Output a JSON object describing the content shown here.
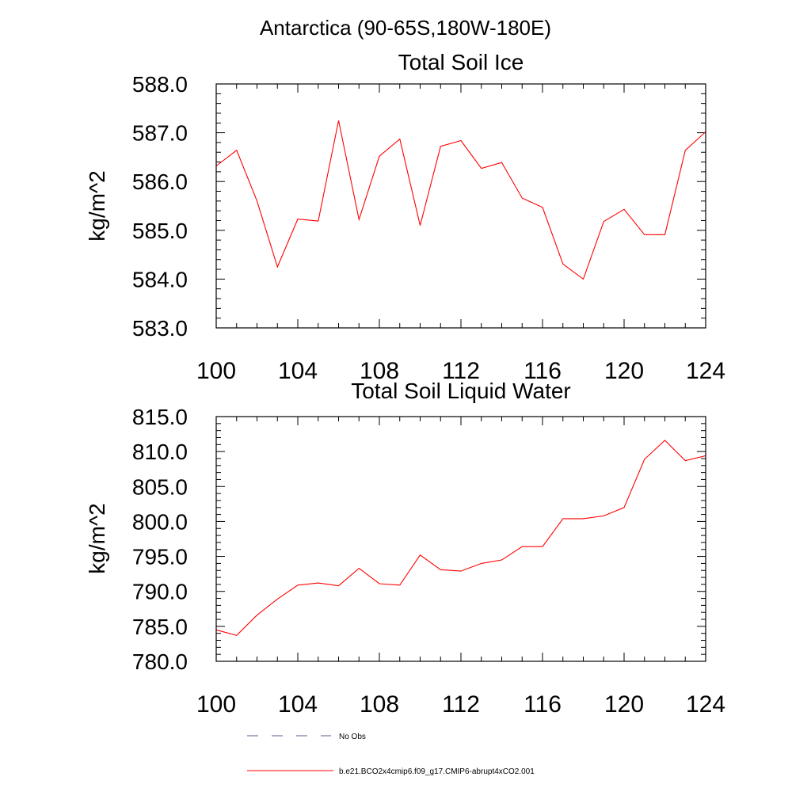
{
  "figure": {
    "region_title": "Antarctica (90-65S,180W-180E)"
  },
  "chart_data": [
    {
      "type": "line",
      "title": "Total Soil Ice",
      "xlabel": "",
      "ylabel": "kg/m^2",
      "xlim": [
        100,
        124
      ],
      "ylim": [
        583.0,
        588.0
      ],
      "x_ticks": [
        "100",
        "104",
        "108",
        "112",
        "116",
        "120",
        "124"
      ],
      "y_ticks": [
        "583.0",
        "584.0",
        "585.0",
        "586.0",
        "587.0",
        "588.0"
      ],
      "x": [
        100,
        101,
        102,
        103,
        104,
        105,
        106,
        107,
        108,
        109,
        110,
        111,
        112,
        113,
        114,
        115,
        116,
        117,
        118,
        119,
        120,
        121,
        122,
        123,
        124
      ],
      "series": [
        {
          "name": "b.e21.BCO2x4cmip6.f09_g17.CMIP6-abrupt4xCO2.001",
          "color": "#ff0000",
          "values": [
            586.32,
            586.64,
            585.6,
            584.25,
            585.23,
            585.19,
            587.25,
            585.22,
            586.52,
            586.87,
            585.1,
            586.72,
            586.84,
            586.27,
            586.39,
            585.66,
            585.47,
            584.31,
            584.0,
            585.18,
            585.43,
            584.91,
            584.91,
            586.64,
            587.02
          ]
        }
      ]
    },
    {
      "type": "line",
      "title": "Total Soil Liquid Water",
      "xlabel": "",
      "ylabel": "kg/m^2",
      "xlim": [
        100,
        124
      ],
      "ylim": [
        780.0,
        815.0
      ],
      "x_ticks": [
        "100",
        "104",
        "108",
        "112",
        "116",
        "120",
        "124"
      ],
      "y_ticks": [
        "780.0",
        "785.0",
        "790.0",
        "795.0",
        "800.0",
        "805.0",
        "810.0",
        "815.0"
      ],
      "x": [
        100,
        101,
        102,
        103,
        104,
        105,
        106,
        107,
        108,
        109,
        110,
        111,
        112,
        113,
        114,
        115,
        116,
        117,
        118,
        119,
        120,
        121,
        122,
        123,
        124
      ],
      "series": [
        {
          "name": "b.e21.BCO2x4cmip6.f09_g17.CMIP6-abrupt4xCO2.001",
          "color": "#ff0000",
          "values": [
            784.5,
            783.7,
            786.6,
            788.9,
            790.9,
            791.2,
            790.8,
            793.3,
            791.1,
            790.9,
            795.2,
            793.1,
            792.9,
            794.0,
            794.5,
            796.4,
            796.4,
            800.4,
            800.4,
            800.8,
            802.0,
            808.9,
            811.6,
            808.7,
            809.4
          ]
        }
      ]
    }
  ],
  "legend": [
    {
      "label": "No Obs",
      "style": "dashed",
      "color": "#5b5b8c"
    },
    {
      "label": "b.e21.BCO2x4cmip6.f09_g17.CMIP6-abrupt4xCO2.001",
      "style": "solid",
      "color": "#ff0000"
    }
  ]
}
